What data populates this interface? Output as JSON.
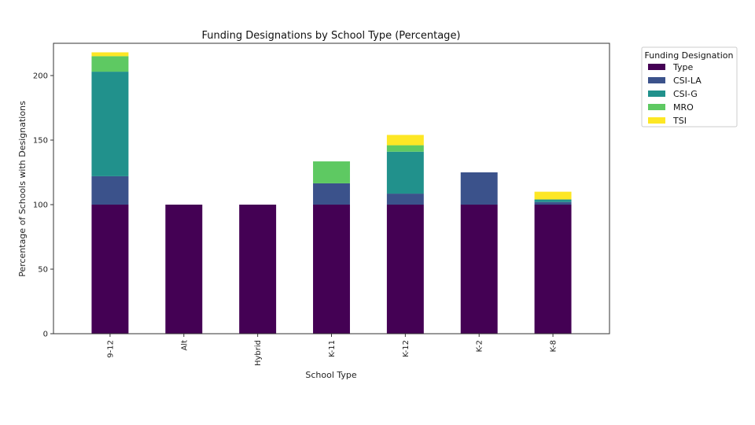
{
  "chart_data": {
    "type": "bar",
    "stacked": true,
    "title": "Funding Designations by School Type (Percentage)",
    "xlabel": "School Type",
    "ylabel": "Percentage of Schools with Designations",
    "ylim": [
      0,
      225
    ],
    "yticks": [
      0,
      50,
      100,
      150,
      200
    ],
    "grid": false,
    "legend": {
      "title": "Funding Designation",
      "placement": "outside-top-right"
    },
    "categories": [
      "9-12",
      "Alt",
      "Hybrid",
      "K-11",
      "K-12",
      "K-2",
      "K-8"
    ],
    "series": [
      {
        "name": "Type",
        "color": "#440154",
        "values": [
          100,
          100,
          100,
          100,
          100,
          100,
          100
        ]
      },
      {
        "name": "CSI-LA",
        "color": "#3b528b",
        "values": [
          22,
          0,
          0,
          16.5,
          8.5,
          25,
          2
        ]
      },
      {
        "name": "CSI-G",
        "color": "#21918c",
        "values": [
          81,
          0,
          0,
          0,
          32.5,
          0,
          2
        ]
      },
      {
        "name": "MRO",
        "color": "#5ec962",
        "values": [
          12,
          0,
          0,
          17,
          5,
          0,
          0
        ]
      },
      {
        "name": "TSI",
        "color": "#fde725",
        "values": [
          3,
          0,
          0,
          0,
          8,
          0,
          6
        ]
      }
    ]
  }
}
